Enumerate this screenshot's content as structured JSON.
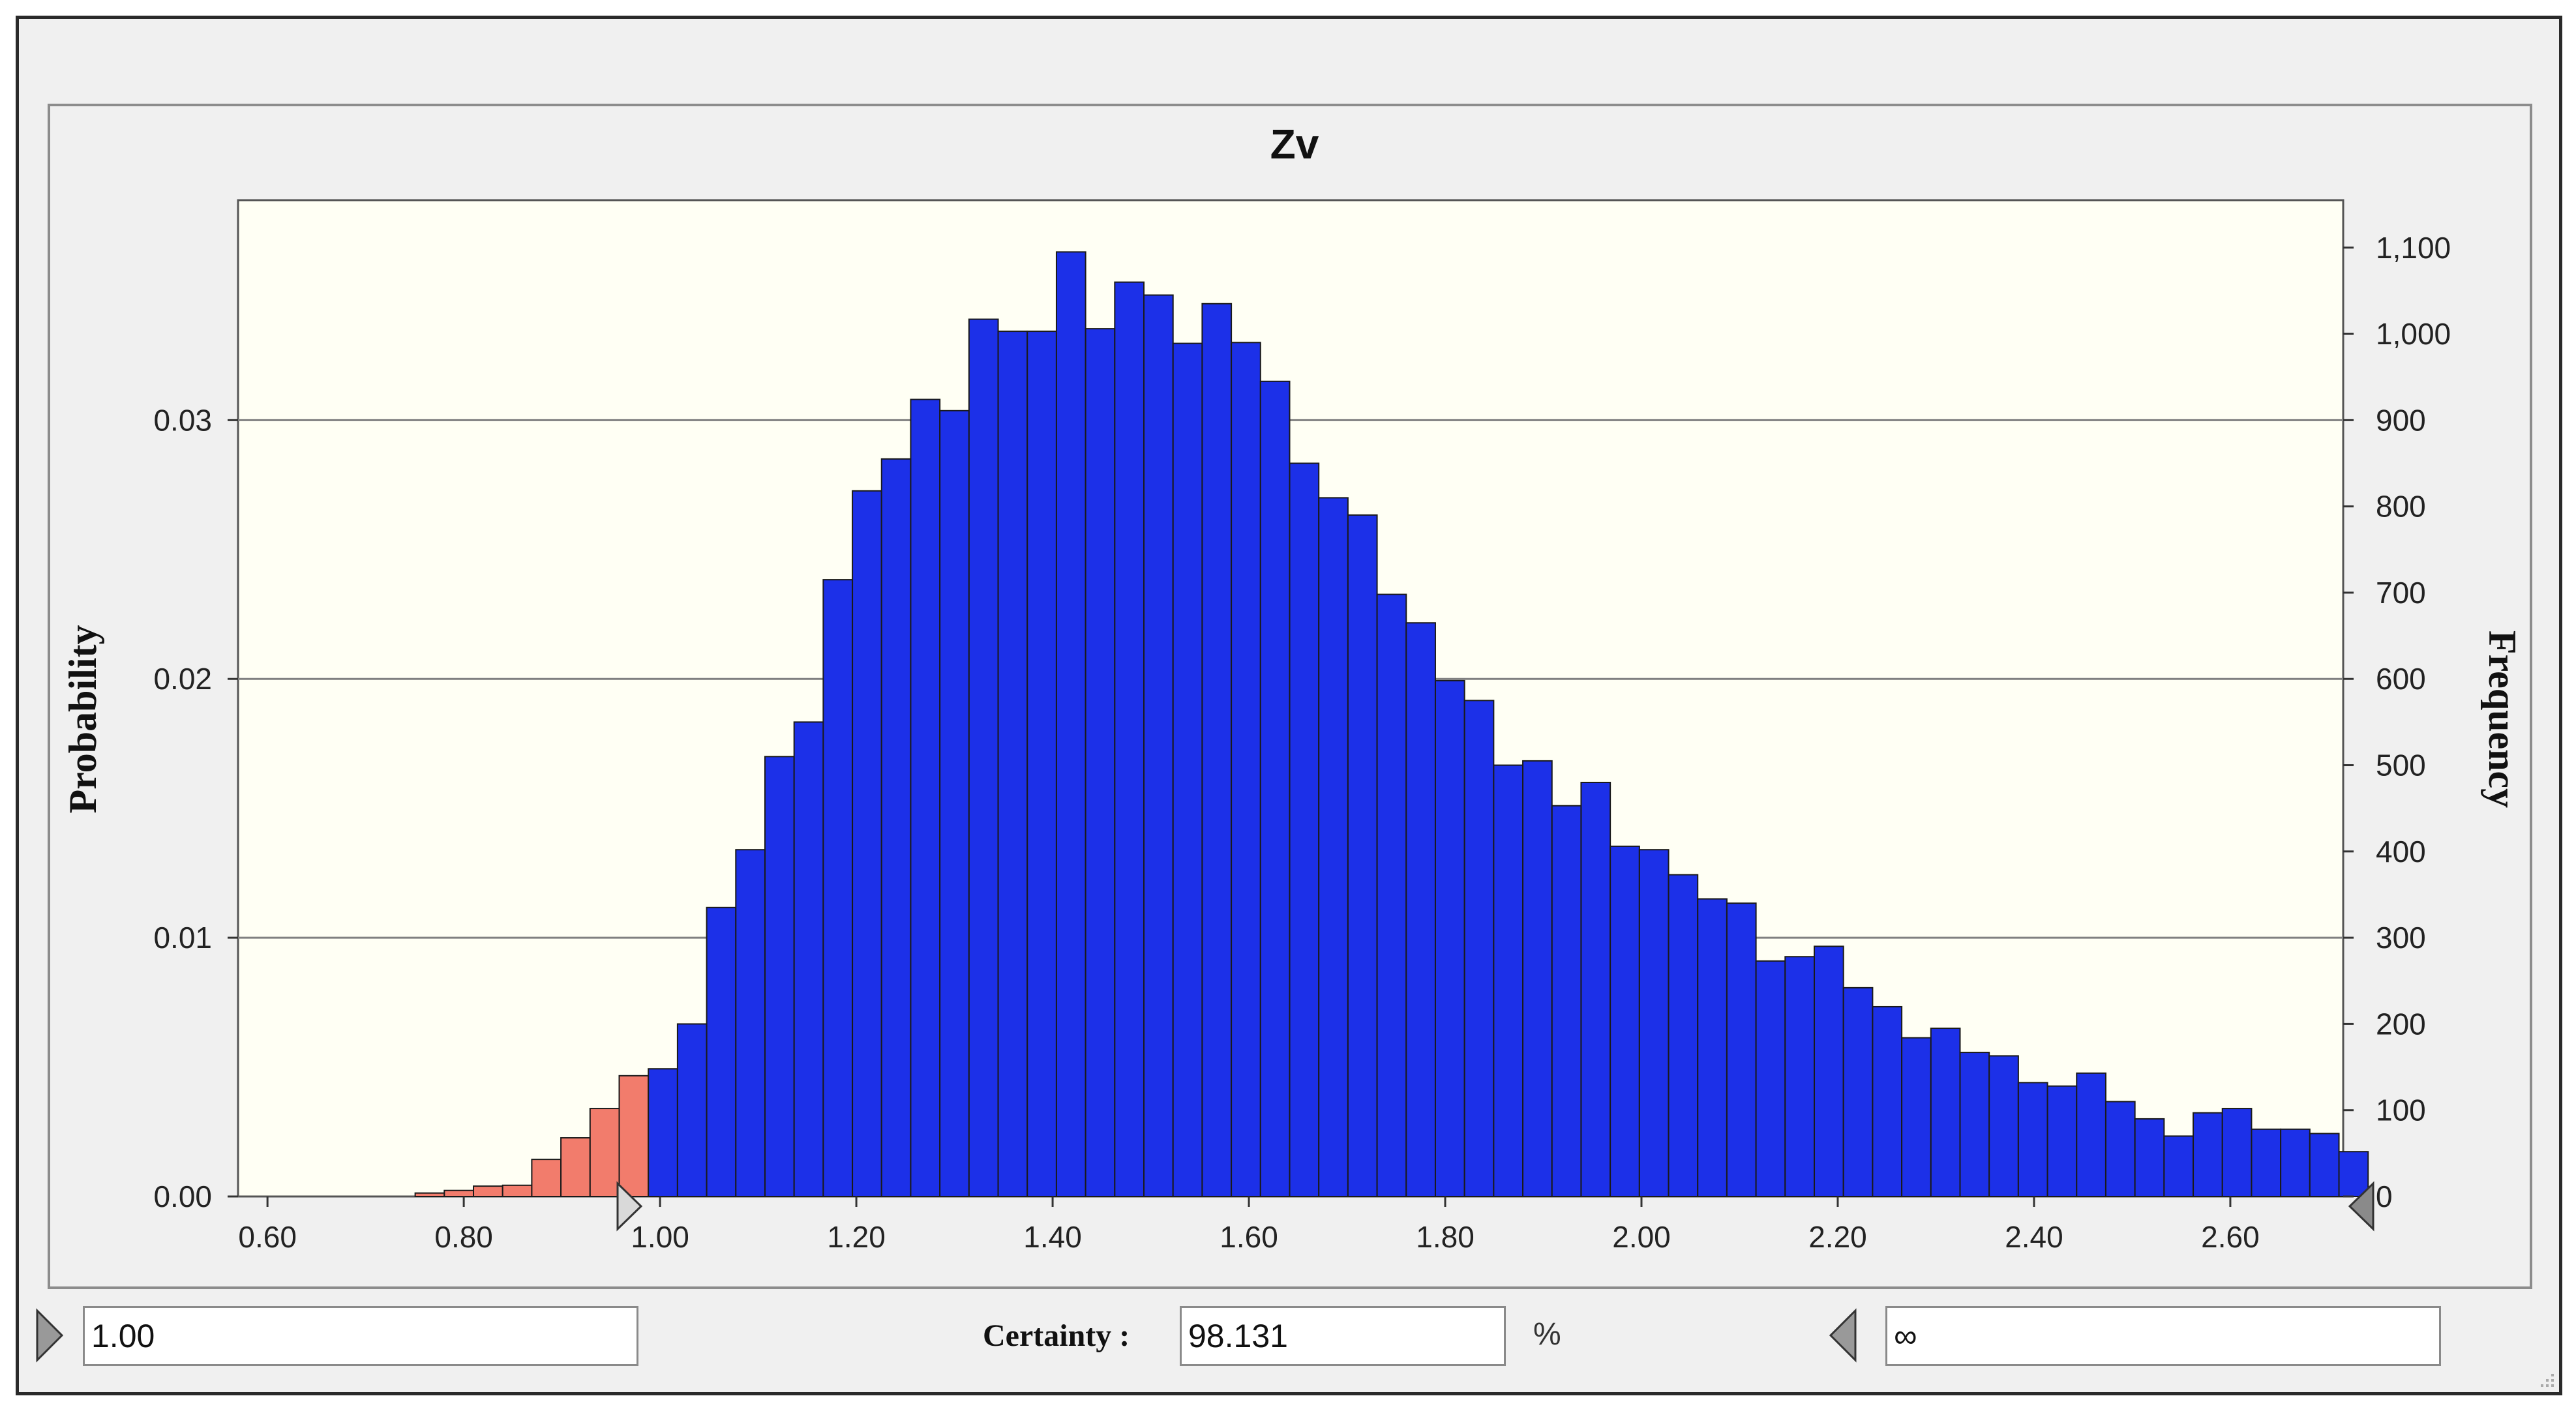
{
  "chart_data": {
    "type": "bar",
    "title": "Zv",
    "ylabel_left": "Probability",
    "ylabel_right": "Frequency",
    "xlim": [
      0.57,
      2.715
    ],
    "ylim_probability": [
      0,
      0.0385
    ],
    "ylim_frequency": [
      0,
      1155
    ],
    "grid": "horizontal",
    "x_ticks": [
      "0.60",
      "0.80",
      "1.00",
      "1.20",
      "1.40",
      "1.60",
      "1.80",
      "2.00",
      "2.20",
      "2.40",
      "2.60"
    ],
    "x_tick_values": [
      0.6,
      0.8,
      1.0,
      1.2,
      1.4,
      1.6,
      1.8,
      2.0,
      2.2,
      2.4,
      2.6
    ],
    "y_ticks_probability": [
      "0.00",
      "0.01",
      "0.02",
      "0.03"
    ],
    "y_tick_values_probability": [
      0,
      0.01,
      0.02,
      0.03
    ],
    "y_ticks_frequency": [
      "0",
      "100",
      "200",
      "300",
      "400",
      "500",
      "600",
      "700",
      "800",
      "900",
      "1,000",
      "1,100"
    ],
    "y_tick_values_frequency": [
      0,
      100,
      200,
      300,
      400,
      500,
      600,
      700,
      800,
      900,
      1000,
      1100
    ],
    "bin_start": 0.7505,
    "bin_width": 0.0297,
    "threshold": 1.0,
    "frequencies": [
      4,
      7,
      12,
      13,
      43,
      68,
      102,
      140,
      148,
      200,
      335,
      402,
      510,
      550,
      715,
      818,
      855,
      924,
      911,
      1017,
      1003,
      1003,
      1095,
      1006,
      1060,
      1045,
      989,
      1035,
      990,
      945,
      850,
      810,
      790,
      698,
      665,
      598,
      575,
      500,
      505,
      453,
      480,
      406,
      402,
      373,
      345,
      340,
      273,
      278,
      290,
      242,
      220,
      184,
      195,
      167,
      163,
      132,
      128,
      143,
      110,
      90,
      70,
      97,
      102,
      78,
      78,
      73,
      52
    ],
    "series": [
      {
        "name": "below lower limit",
        "color": "#f27c6c"
      },
      {
        "name": "within certainty range",
        "color": "#1c30e8"
      }
    ]
  },
  "controls": {
    "lower_value": "1.00",
    "certainty_label": "Certainty :",
    "certainty_value": "98.131",
    "percent_sign": "%",
    "upper_value": "∞"
  },
  "colors": {
    "plot_background": "#fffff4",
    "window_background": "#f0f0f0",
    "bar_outline": "#1a1a1a",
    "gridline": "#808080"
  }
}
